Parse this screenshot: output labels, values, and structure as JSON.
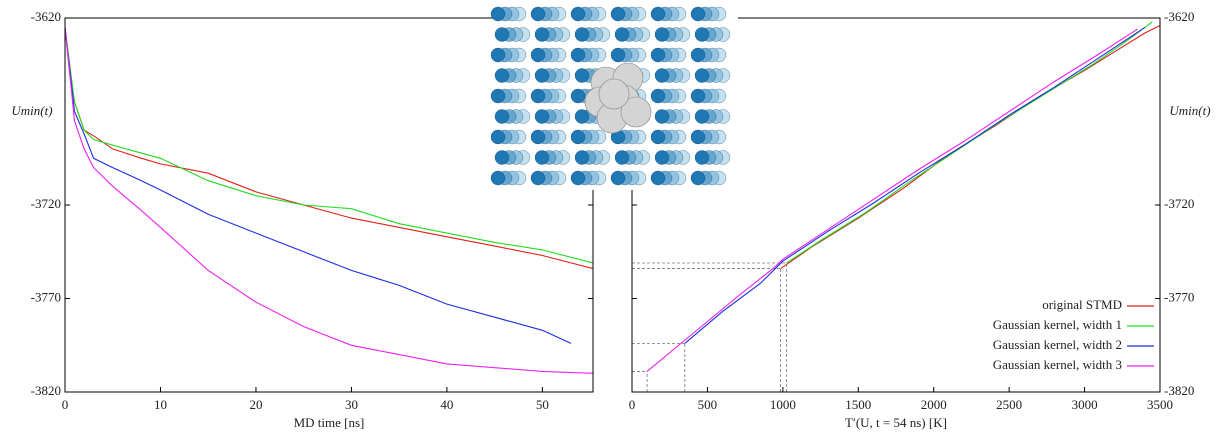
{
  "chart_data": [
    {
      "type": "line",
      "x_label": "MD time [ns]",
      "y_label": "Umin(t)",
      "xlim": [
        0,
        55.3
      ],
      "ylim": [
        -3820,
        -3620
      ],
      "xticks": [
        0,
        10,
        20,
        30,
        40,
        50
      ],
      "yticks": [
        -3620,
        -3720,
        -3770,
        -3820
      ],
      "series": [
        {
          "color": "#e0201b",
          "x": [
            0,
            0.5,
            1,
            2,
            3,
            5,
            8,
            10,
            15,
            20,
            25,
            30,
            35,
            40,
            45,
            50,
            55.3
          ],
          "values": [
            -3625,
            -3650,
            -3665,
            -3680,
            -3683,
            -3690,
            -3695,
            -3698,
            -3703,
            -3713,
            -3720,
            -3727,
            -3732,
            -3737,
            -3742,
            -3747,
            -3754
          ]
        },
        {
          "color": "#22dd22",
          "x": [
            0,
            1,
            2,
            3,
            5,
            10,
            15,
            20,
            25,
            30,
            35,
            40,
            45,
            50,
            55.3
          ],
          "values": [
            -3625,
            -3665,
            -3680,
            -3685,
            -3688,
            -3695,
            -3707,
            -3715,
            -3720,
            -3722,
            -3730,
            -3735,
            -3740,
            -3744,
            -3751
          ]
        },
        {
          "color": "#1c2ee0",
          "x": [
            0,
            1,
            2,
            3,
            5,
            8,
            10,
            15,
            20,
            25,
            30,
            35,
            40,
            45,
            50,
            53
          ],
          "values": [
            -3625,
            -3670,
            -3682,
            -3695,
            -3700,
            -3707,
            -3712,
            -3725,
            -3735,
            -3745,
            -3755,
            -3763,
            -3773,
            -3780,
            -3787,
            -3794
          ]
        },
        {
          "color": "#ee22ee",
          "x": [
            0,
            1,
            2,
            3,
            5,
            8,
            10,
            15,
            20,
            25,
            30,
            35,
            40,
            45,
            50,
            55.3
          ],
          "values": [
            -3625,
            -3675,
            -3690,
            -3700,
            -3710,
            -3723,
            -3732,
            -3755,
            -3772,
            -3785,
            -3795,
            -3800,
            -3805,
            -3807,
            -3809,
            -3810
          ]
        }
      ]
    },
    {
      "type": "line",
      "x_label": "T′(U, t = 54 ns) [K]",
      "y_label": "Umin(t)",
      "xlim": [
        0,
        3500
      ],
      "ylim": [
        -3820,
        -3620
      ],
      "xticks": [
        0,
        500,
        1000,
        1500,
        2000,
        2500,
        3000,
        3500
      ],
      "yticks": [
        -3620,
        -3720,
        -3770,
        -3820
      ],
      "legend": "lower right",
      "series": [
        {
          "name": "original STMD",
          "color": "#e0201b",
          "x": [
            985,
            1200,
            1500,
            1800,
            2100,
            2400,
            2700,
            3000,
            3200,
            3400,
            3500
          ],
          "values": [
            -3754,
            -3742,
            -3727,
            -3711,
            -3693,
            -3678,
            -3662,
            -3648,
            -3638,
            -3628,
            -3624
          ]
        },
        {
          "name": "Gaussian kernel, width 1",
          "color": "#22dd22",
          "x": [
            1025,
            1250,
            1550,
            1850,
            2150,
            2450,
            2750,
            3050,
            3250,
            3450
          ],
          "values": [
            -3751,
            -3739,
            -3724,
            -3707,
            -3691,
            -3675,
            -3660,
            -3645,
            -3634,
            -3622
          ]
        },
        {
          "name": "Gaussian kernel, width 2",
          "color": "#1c2ee0",
          "x": [
            350,
            600,
            850,
            1000,
            1300,
            1600,
            1900,
            2200,
            2500,
            2800,
            3100,
            3400
          ],
          "values": [
            -3794,
            -3777,
            -3762,
            -3750,
            -3734,
            -3719,
            -3703,
            -3688,
            -3672,
            -3657,
            -3641,
            -3625
          ]
        },
        {
          "name": "Gaussian kernel, width 3",
          "color": "#ee22ee",
          "x": [
            100,
            400,
            700,
            950,
            1000,
            1300,
            1600,
            1900,
            2200,
            2500,
            2800,
            3100,
            3350
          ],
          "values": [
            -3809,
            -3789,
            -3769,
            -3753,
            -3749,
            -3733,
            -3717,
            -3701,
            -3686,
            -3670,
            -3654,
            -3639,
            -3626
          ]
        }
      ]
    }
  ]
}
